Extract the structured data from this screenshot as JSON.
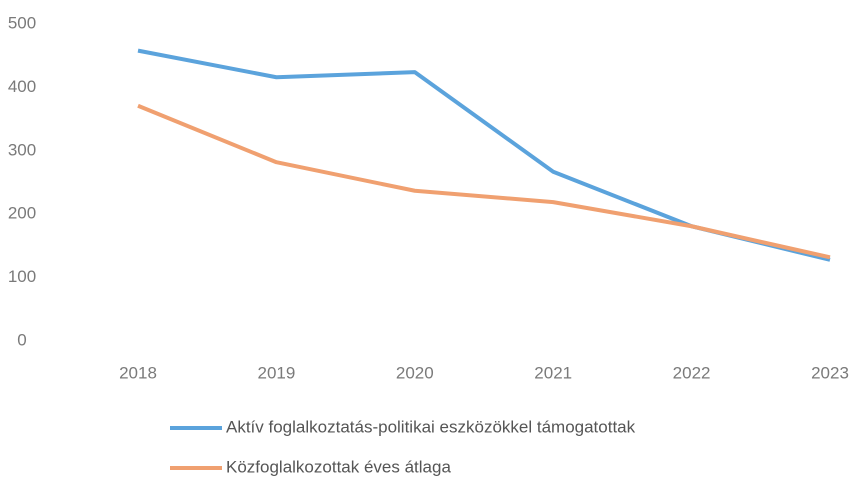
{
  "chart_data": {
    "type": "line",
    "categories": [
      "2018",
      "2019",
      "2020",
      "2021",
      "2022",
      "2023"
    ],
    "series": [
      {
        "name": "Aktív foglalkoztatás-politikai eszközökkel támogatottak",
        "color": "#5ba3dc",
        "values": [
          458,
          416,
          424,
          267,
          181,
          128
        ]
      },
      {
        "name": "Közfoglalkozottak éves átlaga",
        "color": "#f0a070",
        "values": [
          371,
          282,
          237,
          219,
          181,
          132
        ]
      }
    ],
    "ylim": [
      0,
      500
    ],
    "yticks": [
      0,
      100,
      200,
      300,
      400,
      500
    ],
    "grid": false,
    "legend": "bottom"
  }
}
